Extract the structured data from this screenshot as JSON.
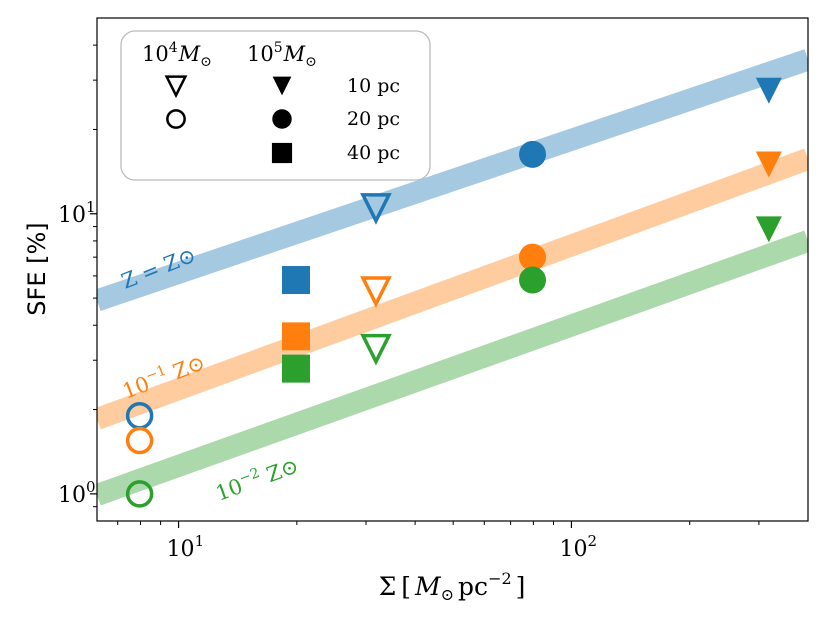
{
  "chart_data": {
    "type": "scatter",
    "title": "",
    "xlabel": {
      "base": "Σ",
      "unit_open": "[",
      "symbol": "M",
      "sub": "⊙",
      "unit": "pc",
      "exp": "−2",
      "unit_close": "]"
    },
    "ylabel": "SFE [%]",
    "xscale": "log",
    "yscale": "log",
    "xlim": [
      6.2,
      400
    ],
    "ylim": [
      0.8,
      50
    ],
    "x_ticks": [
      {
        "value": 10,
        "base": "10",
        "exp": "1"
      },
      {
        "value": 100,
        "base": "10",
        "exp": "2"
      }
    ],
    "y_ticks": [
      {
        "value": 1,
        "base": "10",
        "exp": "0"
      },
      {
        "value": 10,
        "base": "10",
        "exp": "1"
      }
    ],
    "colors": {
      "blue": "#1f77b4",
      "orange": "#ff7f0e",
      "green": "#2ca02c"
    },
    "bands": [
      {
        "name": "Z = Z⊙",
        "color": "#1f77b4",
        "x": [
          6.2,
          400
        ],
        "y": [
          4.9,
          35.5
        ],
        "label": "Z = Z⊙"
      },
      {
        "name": "10^-1 Z⊙",
        "color": "#ff7f0e",
        "x": [
          6.2,
          400
        ],
        "y": [
          1.85,
          15.7
        ],
        "label_base": "10",
        "label_exp": "−1",
        "label_rest": " Z⊙"
      },
      {
        "name": "10^-2 Z⊙",
        "color": "#2ca02c",
        "x": [
          6.2,
          400
        ],
        "y": [
          0.99,
          8.0
        ],
        "label_base": "10",
        "label_exp": "−2",
        "label_rest": " Z⊙"
      }
    ],
    "series": [
      {
        "name": "Z=Z⊙, 10^4 M⊙, 10 pc",
        "color": "#1f77b4",
        "marker": "triangle-down-open",
        "x": [
          31.8
        ],
        "y": [
          10.5
        ]
      },
      {
        "name": "Z=Z⊙, 10^4 M⊙, 20 pc",
        "color": "#1f77b4",
        "marker": "circle-open",
        "x": [
          7.96
        ],
        "y": [
          1.9
        ]
      },
      {
        "name": "Z=Z⊙, 10^5 M⊙, 10 pc",
        "color": "#1f77b4",
        "marker": "triangle-down-filled",
        "x": [
          318
        ],
        "y": [
          27.5
        ]
      },
      {
        "name": "Z=Z⊙, 10^5 M⊙, 20 pc",
        "color": "#1f77b4",
        "marker": "circle-filled",
        "x": [
          79.6
        ],
        "y": [
          16.3
        ]
      },
      {
        "name": "Z=Z⊙, 10^5 M⊙, 40 pc",
        "color": "#1f77b4",
        "marker": "square-filled",
        "x": [
          19.9
        ],
        "y": [
          5.8
        ]
      },
      {
        "name": "Z=0.1Z⊙, 10^4 M⊙, 10 pc",
        "color": "#ff7f0e",
        "marker": "triangle-down-open",
        "x": [
          31.8
        ],
        "y": [
          5.3
        ]
      },
      {
        "name": "Z=0.1Z⊙, 10^4 M⊙, 20 pc",
        "color": "#ff7f0e",
        "marker": "circle-open",
        "x": [
          7.96
        ],
        "y": [
          1.55
        ]
      },
      {
        "name": "Z=0.1Z⊙, 10^5 M⊙, 10 pc",
        "color": "#ff7f0e",
        "marker": "triangle-down-filled",
        "x": [
          318
        ],
        "y": [
          15.0
        ]
      },
      {
        "name": "Z=0.1Z⊙, 10^5 M⊙, 20 pc",
        "color": "#ff7f0e",
        "marker": "circle-filled",
        "x": [
          79.6
        ],
        "y": [
          7.0
        ]
      },
      {
        "name": "Z=0.1Z⊙, 10^5 M⊙, 40 pc",
        "color": "#ff7f0e",
        "marker": "square-filled",
        "x": [
          19.9
        ],
        "y": [
          3.65
        ]
      },
      {
        "name": "Z=0.01Z⊙, 10^4 M⊙, 10 pc",
        "color": "#2ca02c",
        "marker": "triangle-down-open",
        "x": [
          31.8
        ],
        "y": [
          3.3
        ]
      },
      {
        "name": "Z=0.01Z⊙, 10^4 M⊙, 20 pc",
        "color": "#2ca02c",
        "marker": "circle-open",
        "x": [
          7.96
        ],
        "y": [
          1.0
        ]
      },
      {
        "name": "Z=0.01Z⊙, 10^5 M⊙, 10 pc",
        "color": "#2ca02c",
        "marker": "triangle-down-filled",
        "x": [
          318
        ],
        "y": [
          8.8
        ]
      },
      {
        "name": "Z=0.01Z⊙, 10^5 M⊙, 20 pc",
        "color": "#2ca02c",
        "marker": "circle-filled",
        "x": [
          79.6
        ],
        "y": [
          5.8
        ]
      },
      {
        "name": "Z=0.01Z⊙, 10^5 M⊙, 40 pc",
        "color": "#2ca02c",
        "marker": "square-filled",
        "x": [
          19.9
        ],
        "y": [
          2.8
        ]
      }
    ],
    "legend": {
      "placement": "top-left",
      "columns": [
        {
          "base": "10",
          "exp": "4",
          "symbol": "M",
          "sub": "⊙"
        },
        {
          "base": "10",
          "exp": "5",
          "symbol": "M",
          "sub": "⊙"
        }
      ],
      "rows": [
        {
          "label": "10 pc",
          "open_marker": "triangle-down-open",
          "filled_marker": "triangle-down-filled"
        },
        {
          "label": "20 pc",
          "open_marker": "circle-open",
          "filled_marker": "circle-filled"
        },
        {
          "label": "40 pc",
          "open_marker": "",
          "filled_marker": "square-filled"
        }
      ]
    }
  }
}
